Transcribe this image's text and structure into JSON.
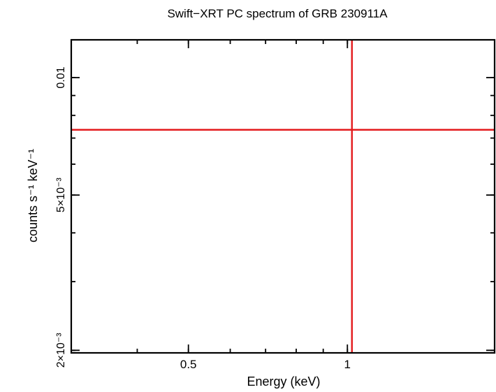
{
  "chart_data": {
    "type": "scatter",
    "title": "Swift−XRT PC spectrum of GRB 230911A",
    "xlabel": "Energy (keV)",
    "ylabel": "counts s⁻¹ keV⁻¹",
    "x_scale": "log",
    "y_scale": "log",
    "xlim": [
      0.3,
      1.9
    ],
    "ylim": [
      0.00197,
      0.0125
    ],
    "x_ticks": [
      {
        "value": 0.5,
        "label": "0.5"
      },
      {
        "value": 1,
        "label": "1"
      }
    ],
    "y_ticks": [
      {
        "value": 0.01,
        "label": "0.01"
      },
      {
        "value": 0.005,
        "label": "5×10⁻³"
      },
      {
        "value": 0.002,
        "label": "2×10⁻³"
      }
    ],
    "grid": false,
    "series": [
      {
        "points": [
          {
            "x": 1.02,
            "y": 0.00735,
            "xerr": [
              1.02,
              1.02
            ],
            "yerr": [
              0.00197,
              0.0125
            ]
          }
        ]
      }
    ],
    "colors": {
      "data": "#e31a1c",
      "frame": "#000000"
    }
  }
}
